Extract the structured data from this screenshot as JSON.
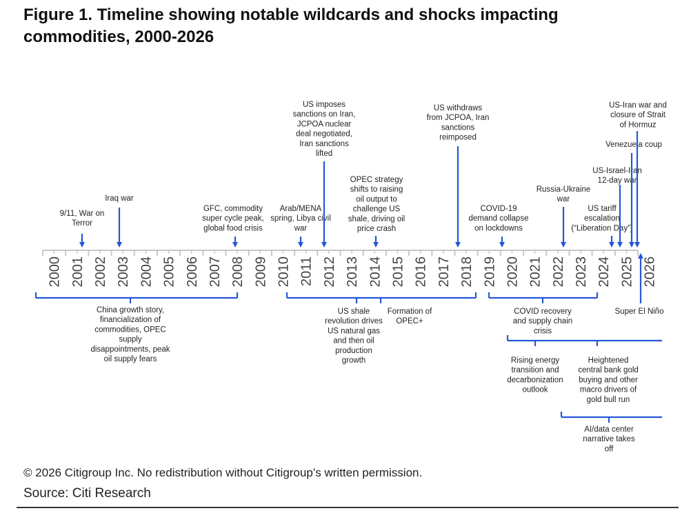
{
  "title": "Figure 1. Timeline showing notable wildcards and shocks impacting commodities, 2000-2026",
  "years": [
    "2000",
    "2001",
    "2002",
    "2003",
    "2004",
    "2005",
    "2006",
    "2007",
    "2008",
    "2009",
    "2010",
    "2011",
    "2012",
    "2013",
    "2014",
    "2015",
    "2016",
    "2017",
    "2018",
    "2019",
    "2020",
    "2021",
    "2022",
    "2023",
    "2024",
    "2025",
    "2026"
  ],
  "events": [
    {
      "name": "event-911",
      "lines": [
        "9/11, War on",
        "Terror"
      ]
    },
    {
      "name": "event-iraq-war",
      "lines": [
        "Iraq war"
      ]
    },
    {
      "name": "event-gfc",
      "lines": [
        "GFC, commodity",
        "super cycle peak,",
        "global food crisis"
      ]
    },
    {
      "name": "event-arab-spring",
      "lines": [
        "Arab/MENA",
        "spring, Libya civil",
        "war"
      ]
    },
    {
      "name": "event-iran-sanctions",
      "lines": [
        "US imposes",
        "sanctions on Iran,",
        "JCPOA nuclear",
        "deal negotiated,",
        "Iran sanctions",
        "lifted"
      ]
    },
    {
      "name": "event-opec-strategy",
      "lines": [
        "OPEC strategy",
        "shifts to raising",
        "oil output to",
        "challenge US",
        "shale, driving oil",
        "price crash"
      ]
    },
    {
      "name": "event-jcpoa-withdraw",
      "lines": [
        "US withdraws",
        "from JCPOA, Iran",
        "sanctions",
        "reimposed"
      ]
    },
    {
      "name": "event-covid",
      "lines": [
        "COVID-19",
        "demand collapse",
        "on lockdowns"
      ]
    },
    {
      "name": "event-russia-ukraine",
      "lines": [
        "Russia-Ukraine",
        "war"
      ]
    },
    {
      "name": "event-us-tariff",
      "lines": [
        "US tariff",
        "escalation",
        "(“Liberation Day”)"
      ]
    },
    {
      "name": "event-israel-iran",
      "lines": [
        "US-Israel-Iran",
        "12-day war"
      ]
    },
    {
      "name": "event-venezuela",
      "lines": [
        "Venezuela coup"
      ]
    },
    {
      "name": "event-us-iran-war",
      "lines": [
        "US-Iran war and",
        "closure of Strait",
        "of Hormuz"
      ]
    },
    {
      "name": "event-super-el-nino",
      "lines": [
        "Super El Niño"
      ]
    }
  ],
  "periods": [
    {
      "name": "period-china-growth",
      "lines": [
        "China growth story,",
        "financialization of",
        "commodities, OPEC",
        "supply",
        "disappointments, peak",
        "oil supply fears"
      ]
    },
    {
      "name": "period-us-shale",
      "lines": [
        "US shale",
        "revolution drives",
        "US natural gas",
        "and then oil",
        "production",
        "growth"
      ]
    },
    {
      "name": "period-opec-plus",
      "lines": [
        "Formation of",
        "OPEC+"
      ]
    },
    {
      "name": "period-covid-recovery",
      "lines": [
        "COVID recovery",
        "and supply chain",
        "crisis"
      ]
    },
    {
      "name": "period-energy-transition",
      "lines": [
        "Rising energy",
        "transition and",
        "decarbonization",
        "outlook"
      ]
    },
    {
      "name": "period-gold-buying",
      "lines": [
        "Heightened",
        "central bank gold",
        "buying and other",
        "macro drivers of",
        "gold bull run"
      ]
    },
    {
      "name": "period-ai-datacenter",
      "lines": [
        "AI/data center",
        "narrative takes",
        "off"
      ]
    }
  ],
  "colors": {
    "accent": "#2456d6",
    "axis": "#c8c8c8",
    "text": "#222222",
    "year_text": "#444444"
  },
  "footer": {
    "copyright": "© 2026 Citigroup Inc. No redistribution without Citigroup’s written permission.",
    "source": "Source: Citi Research"
  }
}
